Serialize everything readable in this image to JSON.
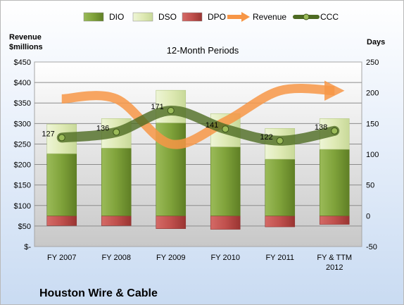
{
  "chart_data": {
    "type": "bar",
    "title": "Houston Wire & Cable",
    "subtitle": "12-Month Periods",
    "ylabel_left_line1": "Revenue",
    "ylabel_left_line2": "$millions",
    "ylabel_right": "Days",
    "categories": [
      [
        "FY 2007"
      ],
      [
        "FY 2008"
      ],
      [
        "FY 2009"
      ],
      [
        "FY 2010"
      ],
      [
        "FY 2011"
      ],
      [
        "FY & TTM",
        "2012"
      ]
    ],
    "left_axis": {
      "min": 0,
      "max": 450,
      "step": 50,
      "tick_labels": [
        "$-",
        "$50",
        "$100",
        "$150",
        "$200",
        "$250",
        "$300",
        "$350",
        "$400",
        "$450"
      ]
    },
    "right_axis": {
      "min": -50,
      "max": 250,
      "step": 50,
      "tick_labels": [
        "-50",
        "0",
        "50",
        "100",
        "150",
        "200",
        "250"
      ]
    },
    "legend": [
      "DIO",
      "DSO",
      "DPO",
      "Revenue",
      "CCC"
    ],
    "colors": {
      "DIO": "#7fa23a",
      "DSO": "#ddeab3",
      "DPO": "#c0504d",
      "Revenue": "#f79646",
      "CCC": "#4e6b22"
    },
    "series": [
      {
        "name": "DIO",
        "axis": "right",
        "values": [
          101,
          110,
          151,
          112,
          92,
          108
        ]
      },
      {
        "name": "DSO",
        "axis": "right",
        "values": [
          48,
          48,
          53,
          54,
          50,
          50
        ]
      },
      {
        "name": "DPO",
        "axis": "right",
        "values": [
          -16,
          -16,
          -21,
          -22,
          -18,
          -14
        ]
      },
      {
        "name": "Revenue",
        "axis": "left",
        "values": [
          360,
          360,
          250,
          305,
          380,
          380
        ]
      },
      {
        "name": "CCC",
        "axis": "right",
        "values": [
          127,
          136,
          171,
          141,
          122,
          138
        ]
      }
    ],
    "data_labels": [
      "127",
      "136",
      "171",
      "141",
      "122",
      "138"
    ]
  }
}
